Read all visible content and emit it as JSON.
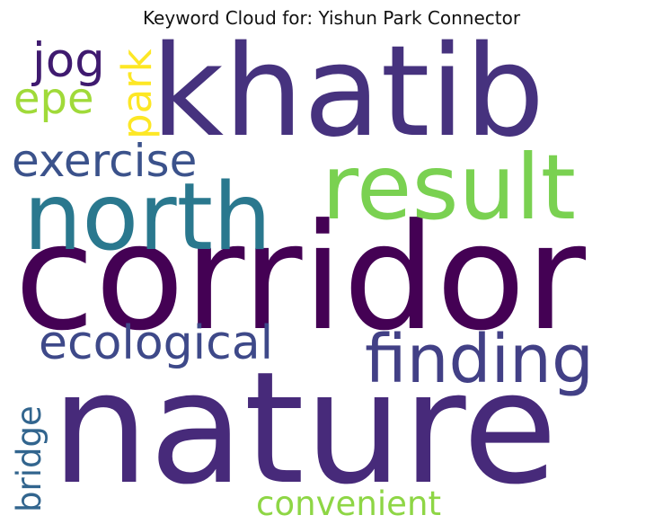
{
  "title": "Keyword Cloud for: Yishun Park Connector",
  "words": [
    {
      "id": "nature",
      "text": "nature",
      "weight": 1.0,
      "color": "#472a7a",
      "orientation": "horizontal"
    },
    {
      "id": "corridor",
      "text": "corridor",
      "weight": 0.97,
      "color": "#440154",
      "orientation": "horizontal"
    },
    {
      "id": "khatib",
      "text": "khatib",
      "weight": 0.82,
      "color": "#46327e",
      "orientation": "horizontal"
    },
    {
      "id": "north",
      "text": "north",
      "weight": 0.6,
      "color": "#2a788e",
      "orientation": "horizontal"
    },
    {
      "id": "result",
      "text": "result",
      "weight": 0.58,
      "color": "#7ad151",
      "orientation": "horizontal"
    },
    {
      "id": "finding",
      "text": "finding",
      "weight": 0.43,
      "color": "#424086",
      "orientation": "horizontal"
    },
    {
      "id": "ecological",
      "text": "ecological",
      "weight": 0.3,
      "color": "#3e4989",
      "orientation": "horizontal"
    },
    {
      "id": "exercise",
      "text": "exercise",
      "weight": 0.29,
      "color": "#3b528b",
      "orientation": "horizontal"
    },
    {
      "id": "park",
      "text": "park",
      "weight": 0.26,
      "color": "#fde725",
      "orientation": "vertical"
    },
    {
      "id": "jog",
      "text": "jog",
      "weight": 0.23,
      "color": "#3f1a6f",
      "orientation": "horizontal"
    },
    {
      "id": "epe",
      "text": "epe",
      "weight": 0.23,
      "color": "#a0da39",
      "orientation": "horizontal"
    },
    {
      "id": "bridge",
      "text": "bridge",
      "weight": 0.22,
      "color": "#32658e",
      "orientation": "vertical"
    },
    {
      "id": "convenient",
      "text": "convenient",
      "weight": 0.22,
      "color": "#8ed645",
      "orientation": "horizontal"
    }
  ]
}
